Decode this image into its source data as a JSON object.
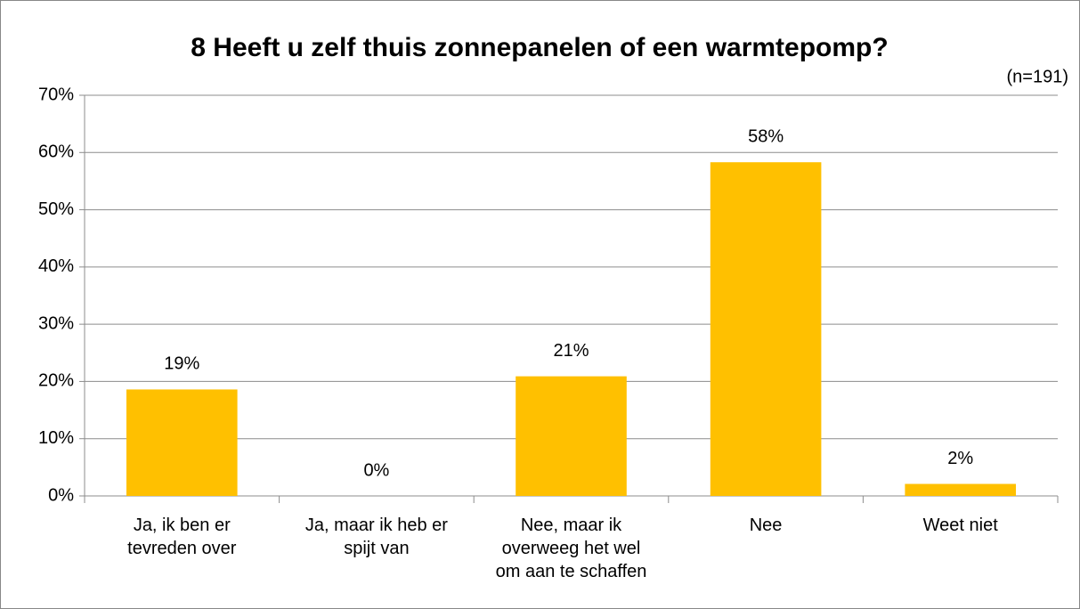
{
  "chart_data": {
    "type": "bar",
    "title": "8 Heeft u zelf thuis zonnepanelen of een warmtepomp?",
    "subtitle": "(n=191)",
    "categories": [
      "Ja, ik ben er tevreden over",
      "Ja, maar ik heb er spijt van",
      "Nee, maar ik overweeg het wel om aan te schaffen",
      "Nee",
      "Weet niet"
    ],
    "values": [
      18.6,
      0,
      20.9,
      58.3,
      2.1
    ],
    "value_labels": [
      "19%",
      "0%",
      "21%",
      "58%",
      "2%"
    ],
    "color": "#ffc000",
    "ylim": [
      0,
      70
    ],
    "yticks": [
      {
        "value": 0,
        "label": "0%"
      },
      {
        "value": 10,
        "label": "10%"
      },
      {
        "value": 20,
        "label": "20%"
      },
      {
        "value": 30,
        "label": "30%"
      },
      {
        "value": 40,
        "label": "40%"
      },
      {
        "value": 50,
        "label": "50%"
      },
      {
        "value": 60,
        "label": "60%"
      },
      {
        "value": 70,
        "label": "70%"
      }
    ],
    "grid": true
  }
}
